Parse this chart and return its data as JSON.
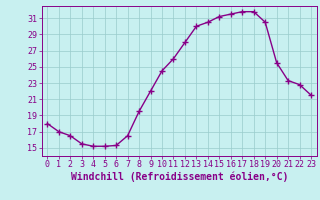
{
  "x": [
    0,
    1,
    2,
    3,
    4,
    5,
    6,
    7,
    8,
    9,
    10,
    11,
    12,
    13,
    14,
    15,
    16,
    17,
    18,
    19,
    20,
    21,
    22,
    23
  ],
  "y": [
    18.0,
    17.0,
    16.5,
    15.5,
    15.2,
    15.2,
    15.3,
    16.5,
    19.5,
    22.0,
    24.5,
    26.0,
    28.0,
    30.0,
    30.5,
    31.2,
    31.5,
    31.8,
    31.8,
    30.5,
    25.5,
    23.3,
    22.8,
    21.5
  ],
  "line_color": "#880088",
  "marker": "+",
  "marker_size": 4,
  "bg_color": "#c8f0f0",
  "grid_color": "#99cccc",
  "xlabel": "Windchill (Refroidissement éolien,°C)",
  "ylabel": "",
  "xlim": [
    -0.5,
    23.5
  ],
  "ylim": [
    14.0,
    32.5
  ],
  "yticks": [
    15,
    17,
    19,
    21,
    23,
    25,
    27,
    29,
    31
  ],
  "xticks": [
    0,
    1,
    2,
    3,
    4,
    5,
    6,
    7,
    8,
    9,
    10,
    11,
    12,
    13,
    14,
    15,
    16,
    17,
    18,
    19,
    20,
    21,
    22,
    23
  ],
  "xlabel_fontsize": 7,
  "tick_fontsize": 6,
  "tick_color": "#880088",
  "spine_color": "#880088",
  "linewidth": 1.0,
  "markeredgewidth": 1.0
}
